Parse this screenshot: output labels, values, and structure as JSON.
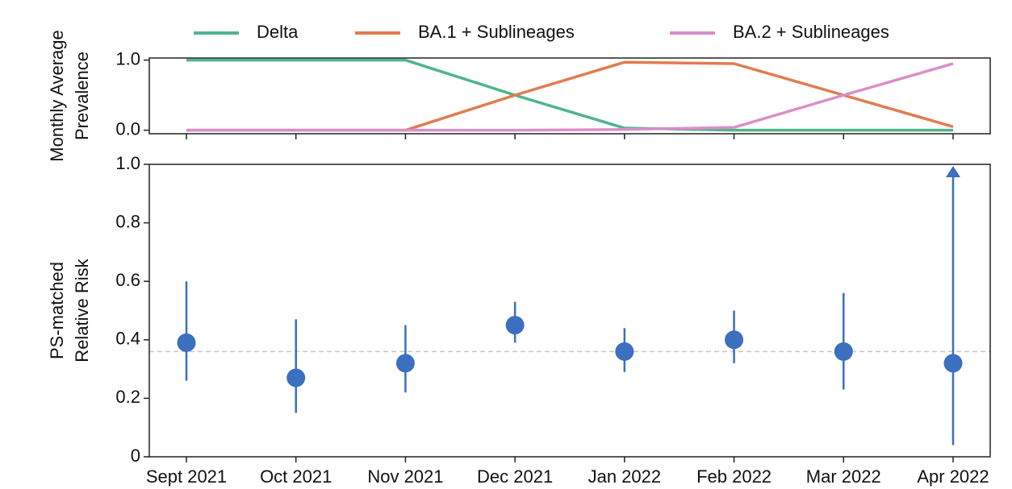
{
  "chart_data": [
    {
      "type": "line",
      "y_label": [
        "Monthly Average",
        "Prevalence"
      ],
      "ylim": [
        -0.05,
        1.03
      ],
      "yticks": [
        {
          "value": 0,
          "label": "0.0"
        },
        {
          "value": 1,
          "label": "1.0"
        }
      ],
      "legend": "top",
      "series": [
        {
          "name": "Delta",
          "color": "#4fb58c",
          "values": [
            1,
            1,
            1,
            0.5,
            0.03,
            0,
            0,
            0
          ]
        },
        {
          "name": "BA.1 + Sublineages",
          "color": "#e17c50",
          "values": [
            0,
            0,
            0,
            0.5,
            0.97,
            0.95,
            0.5,
            0.05
          ]
        },
        {
          "name": "BA.2 + Sublineages",
          "color": "#d98fc9",
          "values": [
            0,
            0,
            0,
            0,
            0.01,
            0.04,
            0.5,
            0.95
          ]
        }
      ]
    },
    {
      "type": "errorbar",
      "y_label": [
        "PS-matched",
        "Relative Risk"
      ],
      "categories": [
        "Sept 2021",
        "Oct 2021",
        "Nov 2021",
        "Dec 2021",
        "Jan 2022",
        "Feb 2022",
        "Mar 2022",
        "Apr 2022"
      ],
      "values": [
        0.39,
        0.27,
        0.32,
        0.45,
        0.36,
        0.4,
        0.36,
        0.32
      ],
      "lower": [
        0.26,
        0.15,
        0.22,
        0.39,
        0.29,
        0.32,
        0.23,
        0.04
      ],
      "upper": [
        0.6,
        0.47,
        0.45,
        0.53,
        0.44,
        0.5,
        0.56,
        1.0
      ],
      "color": "#3b6fbf",
      "reference_line": 0.36,
      "ylim": [
        0,
        1
      ],
      "yticks": [
        0,
        0.2,
        0.4,
        0.6,
        0.8,
        {
          "value": 1,
          "label": "1.0"
        }
      ]
    }
  ]
}
